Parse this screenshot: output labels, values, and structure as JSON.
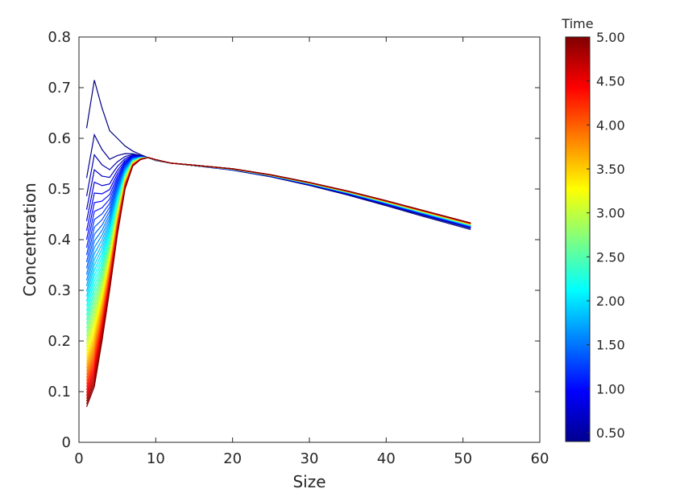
{
  "chart_data": {
    "type": "line",
    "xlabel": "Size",
    "ylabel": "Concentration",
    "xlim": [
      0,
      60
    ],
    "ylim": [
      0,
      0.8
    ],
    "xticks": [
      "0",
      "10",
      "20",
      "30",
      "40",
      "50",
      "60"
    ],
    "yticks": [
      "0",
      "0.1",
      "0.2",
      "0.3",
      "0.4",
      "0.5",
      "0.6",
      "0.7",
      "0.8"
    ],
    "grid": false,
    "colorbar": {
      "title": "Time",
      "colormap": "jet",
      "range": [
        0.4,
        5.0
      ],
      "ticks": [
        "0.50",
        "1.00",
        "1.50",
        "2.00",
        "2.50",
        "3.00",
        "3.50",
        "4.00",
        "4.50",
        "5.00"
      ]
    },
    "series_meta": {
      "count": 47,
      "time_start": 0.4,
      "time_end": 5.0,
      "size_range": [
        1,
        51
      ]
    },
    "curves": {
      "early": {
        "time": 0.4,
        "x": [
          1,
          2,
          3,
          4,
          5,
          6,
          7,
          8,
          9,
          10,
          12,
          15,
          20,
          25,
          30,
          35,
          40,
          45,
          51
        ],
        "y": [
          0.62,
          0.715,
          0.66,
          0.615,
          0.6,
          0.585,
          0.575,
          0.568,
          0.562,
          0.556,
          0.551,
          0.546,
          0.537,
          0.524,
          0.507,
          0.488,
          0.467,
          0.445,
          0.42
        ]
      },
      "late": {
        "time": 5.0,
        "x": [
          1,
          2,
          3,
          4,
          5,
          6,
          7,
          8,
          9,
          10,
          12,
          15,
          20,
          25,
          30,
          35,
          40,
          45,
          51
        ],
        "y": [
          0.07,
          0.11,
          0.2,
          0.3,
          0.41,
          0.5,
          0.545,
          0.558,
          0.562,
          0.558,
          0.551,
          0.547,
          0.54,
          0.528,
          0.513,
          0.496,
          0.477,
          0.457,
          0.433
        ]
      }
    }
  }
}
